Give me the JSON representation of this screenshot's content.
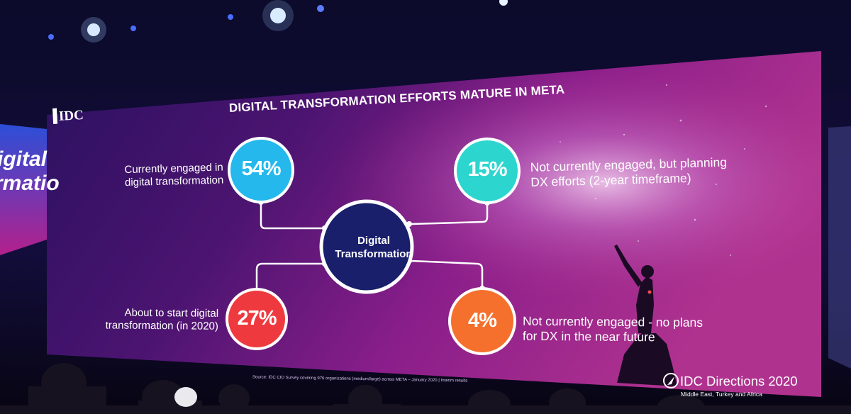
{
  "slide": {
    "title": "DIGITAL TRANSFORMATION EFFORTS MATURE IN META",
    "logo": "IDC",
    "side_screen_text": [
      "igital",
      "rmatio"
    ],
    "center_label_line1": "Digital",
    "center_label_line2": "Transformation",
    "segments": [
      {
        "percent": "54%",
        "label_lines": [
          "Currently engaged in",
          "digital transformation"
        ],
        "color": "#24b8ec"
      },
      {
        "percent": "15%",
        "label_lines": [
          "Not currently engaged, but planning",
          "DX efforts (2-year timeframe)"
        ],
        "color": "#2cd6cf"
      },
      {
        "percent": "27%",
        "label_lines": [
          "About to start digital",
          "transformation (in 2020)"
        ],
        "color": "#ee3a3f"
      },
      {
        "percent": "4%",
        "label_lines": [
          "Not currently engaged - no plans",
          "for DX in the near future"
        ],
        "color": "#f5702c"
      }
    ],
    "center_color": "#1a1f6b",
    "source": "Source: IDC CIO Survey covering 976 organizations (medium/large) across META – January 2020 | Interim results",
    "brand": "IDC Directions 2020",
    "brand_sub": "Middle East, Turkey and Africa"
  }
}
